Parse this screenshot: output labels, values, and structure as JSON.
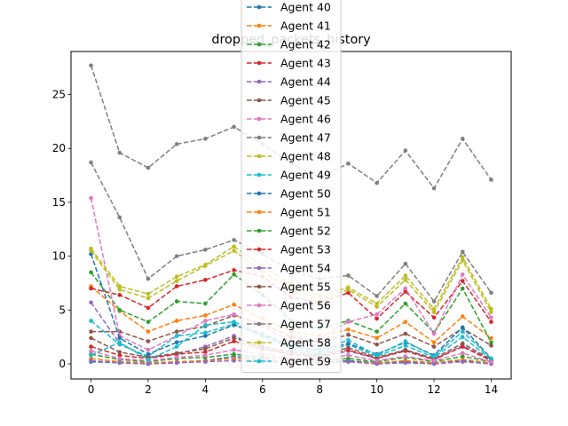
{
  "chart_data": {
    "type": "line",
    "title": "dropped_packets_history",
    "xlabel": "",
    "ylabel": "",
    "xlim": [
      -0.7,
      14.7
    ],
    "ylim": [
      -1.4,
      29.0
    ],
    "x_ticks": [
      0,
      2,
      4,
      6,
      8,
      10,
      12,
      14
    ],
    "y_ticks": [
      0,
      5,
      10,
      15,
      20,
      25
    ],
    "grid": false,
    "legend_placement": "upper center",
    "line_style": "dashed with point markers",
    "x": [
      0,
      1,
      2,
      3,
      4,
      5,
      6,
      7,
      8,
      9,
      10,
      11,
      12,
      13,
      14
    ],
    "series": [
      {
        "name": "Agent 40",
        "color": "#1f77b4",
        "values": [
          0.2,
          0.1,
          0.0,
          0.1,
          0.3,
          0.7,
          0.4,
          0.2,
          0.1,
          0.3,
          0.1,
          0.2,
          0.1,
          0.3,
          0.1
        ]
      },
      {
        "name": "Agent 41",
        "color": "#ff7f0e",
        "values": [
          7.2,
          4.9,
          3.0,
          4.0,
          4.5,
          5.5,
          4.2,
          3.0,
          2.6,
          3.2,
          2.4,
          3.9,
          2.0,
          4.4,
          2.4
        ]
      },
      {
        "name": "Agent 42",
        "color": "#2ca02c",
        "values": [
          8.5,
          5.0,
          3.9,
          5.8,
          5.6,
          8.3,
          6.4,
          4.0,
          3.3,
          4.0,
          3.0,
          5.6,
          2.9,
          7.0,
          2.0
        ]
      },
      {
        "name": "Agent 43",
        "color": "#d62728",
        "values": [
          7.0,
          6.4,
          5.2,
          7.2,
          7.8,
          8.7,
          8.1,
          6.2,
          5.7,
          6.6,
          4.2,
          6.7,
          4.3,
          7.7,
          3.9
        ]
      },
      {
        "name": "Agent 44",
        "color": "#9467bd",
        "values": [
          5.7,
          1.9,
          0.6,
          0.9,
          1.6,
          2.6,
          1.4,
          0.9,
          0.6,
          1.2,
          0.5,
          1.3,
          0.4,
          1.7,
          0.3
        ]
      },
      {
        "name": "Agent 45",
        "color": "#8c564b",
        "values": [
          3.0,
          3.0,
          2.1,
          3.0,
          3.5,
          4.5,
          3.7,
          2.5,
          2.0,
          2.7,
          1.8,
          2.8,
          1.6,
          3.3,
          1.7
        ]
      },
      {
        "name": "Agent 46",
        "color": "#e377c2",
        "values": [
          15.4,
          2.6,
          1.3,
          2.6,
          4.0,
          4.6,
          3.5,
          2.1,
          2.4,
          3.9,
          4.6,
          7.0,
          2.8,
          8.3,
          4.3
        ]
      },
      {
        "name": "Agent 47",
        "color": "#7f7f7f",
        "values": [
          27.7,
          19.6,
          18.2,
          20.4,
          20.9,
          22.0,
          20.4,
          18.6,
          17.3,
          18.6,
          16.8,
          19.8,
          16.3,
          20.9,
          17.1
        ]
      },
      {
        "name": "Agent 48",
        "color": "#bcbd22",
        "values": [
          10.7,
          7.2,
          6.5,
          8.1,
          9.2,
          10.9,
          9.1,
          7.4,
          6.3,
          7.1,
          5.6,
          8.2,
          5.1,
          9.9,
          5.1
        ]
      },
      {
        "name": "Agent 49",
        "color": "#17becf",
        "values": [
          4.0,
          1.8,
          0.7,
          2.6,
          2.9,
          3.7,
          2.6,
          1.4,
          0.9,
          1.8,
          0.7,
          1.7,
          0.6,
          2.5,
          0.4
        ]
      },
      {
        "name": "Agent 50",
        "color": "#1f77b4",
        "values": [
          10.2,
          2.4,
          0.9,
          2.0,
          2.6,
          3.6,
          2.7,
          1.6,
          1.2,
          1.9,
          0.9,
          2.0,
          0.8,
          3.4,
          0.5
        ]
      },
      {
        "name": "Agent 51",
        "color": "#ff7f0e",
        "values": [
          0.5,
          0.2,
          0.1,
          0.2,
          0.3,
          0.5,
          0.3,
          0.2,
          0.1,
          0.2,
          0.1,
          0.3,
          0.1,
          0.4,
          0.1
        ]
      },
      {
        "name": "Agent 52",
        "color": "#2ca02c",
        "values": [
          0.9,
          0.4,
          0.2,
          0.5,
          0.6,
          0.9,
          0.6,
          0.4,
          0.3,
          0.5,
          0.2,
          0.6,
          0.2,
          0.7,
          0.2
        ]
      },
      {
        "name": "Agent 53",
        "color": "#d62728",
        "values": [
          1.6,
          0.8,
          0.5,
          0.9,
          1.1,
          2.1,
          1.4,
          0.9,
          0.7,
          1.3,
          0.5,
          1.2,
          0.4,
          1.6,
          0.3
        ]
      },
      {
        "name": "Agent 54",
        "color": "#9467bd",
        "values": [
          0.3,
          0.1,
          0.0,
          0.1,
          0.2,
          0.3,
          0.2,
          0.1,
          0.1,
          0.2,
          0.0,
          0.1,
          0.0,
          0.2,
          0.0
        ]
      },
      {
        "name": "Agent 55",
        "color": "#8c564b",
        "values": [
          2.4,
          1.1,
          0.6,
          1.0,
          1.4,
          2.4,
          1.6,
          1.1,
          0.8,
          1.5,
          0.6,
          1.3,
          0.5,
          1.9,
          0.4
        ]
      },
      {
        "name": "Agent 56",
        "color": "#e377c2",
        "values": [
          1.2,
          0.5,
          0.3,
          0.6,
          0.8,
          1.3,
          0.9,
          0.5,
          0.4,
          0.8,
          0.3,
          0.7,
          0.3,
          1.0,
          0.2
        ]
      },
      {
        "name": "Agent 57",
        "color": "#7f7f7f",
        "values": [
          18.7,
          13.6,
          7.9,
          10.0,
          10.6,
          11.5,
          10.2,
          8.6,
          7.9,
          8.2,
          6.3,
          9.3,
          5.8,
          10.4,
          6.6
        ]
      },
      {
        "name": "Agent 58",
        "color": "#bcbd22",
        "values": [
          10.5,
          6.9,
          6.1,
          7.7,
          9.1,
          10.5,
          8.6,
          7.0,
          5.9,
          6.9,
          5.3,
          7.8,
          4.8,
          9.6,
          4.8
        ]
      },
      {
        "name": "Agent 59",
        "color": "#17becf",
        "values": [
          0.8,
          2.0,
          0.4,
          1.6,
          3.6,
          3.9,
          2.8,
          1.8,
          1.3,
          2.2,
          0.8,
          2.1,
          0.7,
          3.0,
          0.5
        ]
      }
    ]
  }
}
